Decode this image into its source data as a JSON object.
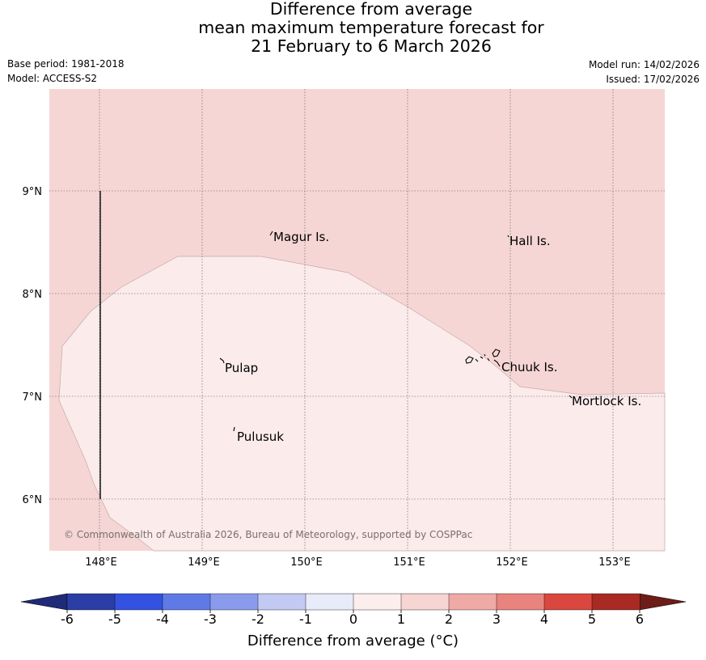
{
  "title": {
    "line1": "Difference from average",
    "line2": "mean maximum temperature forecast for",
    "line3": "21 February to 6 March 2026"
  },
  "meta": {
    "base_period": "Base period: 1981-2018",
    "model": "Model: ACCESS-S2",
    "model_run": "Model run: 14/02/2026",
    "issued": "Issued: 17/02/2026"
  },
  "map": {
    "lon_ticks": [
      "148°E",
      "149°E",
      "150°E",
      "151°E",
      "152°E",
      "153°E"
    ],
    "lat_ticks": [
      "9°N",
      "8°N",
      "7°N",
      "6°N"
    ],
    "places": [
      "Magur Is.",
      "Hall Is.",
      "Pulap",
      "Chuuk Is.",
      "Mortlock Is.",
      "Pulusuk"
    ],
    "copyright": "© Commonwealth of Australia 2026, Bureau of Meteorology, supported by COSPPac",
    "colors": {
      "band_1_2": "#f5d6d5",
      "band_0_1": "#fbebea",
      "grid": "#555555"
    }
  },
  "colorbar": {
    "ticks": [
      "-6",
      "-5",
      "-4",
      "-3",
      "-2",
      "-1",
      "0",
      "1",
      "2",
      "3",
      "4",
      "5",
      "6"
    ],
    "colors": [
      "#2b3ea5",
      "#3352e0",
      "#5f79e5",
      "#8a9bec",
      "#c2caf3",
      "#e8ebfa",
      "#fdeeee",
      "#f6d5d3",
      "#efaaa6",
      "#e8837d",
      "#d9473e",
      "#a82a22"
    ],
    "under_color": "#1f2a78",
    "over_color": "#6e1c17",
    "label": "Difference from average (°C)"
  }
}
